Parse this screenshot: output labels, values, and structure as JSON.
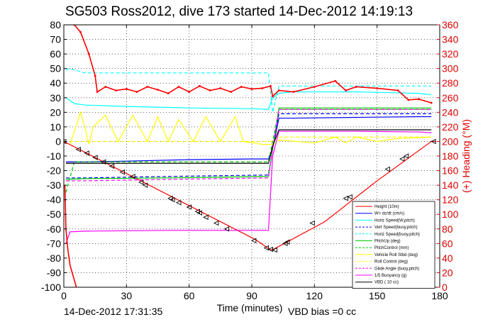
{
  "chart_data": {
    "type": "line",
    "title": "SG503 Ross2012, dive 173 started 14-Dec-2012 14:19:13",
    "xlabel": "Time (minutes)",
    "ylabel_right": "(+) Heading (°M)",
    "xlim": [
      0,
      180
    ],
    "ylim": [
      -100,
      80
    ],
    "y2lim": [
      0,
      360
    ],
    "x_ticks": [
      0,
      30,
      60,
      90,
      120,
      150,
      180
    ],
    "y_ticks": [
      -100,
      -90,
      -80,
      -70,
      -60,
      -50,
      -40,
      -30,
      -20,
      -10,
      0,
      10,
      20,
      30,
      40,
      50,
      60,
      70,
      80
    ],
    "y2_ticks": [
      0,
      20,
      40,
      60,
      80,
      100,
      120,
      140,
      160,
      180,
      200,
      220,
      240,
      260,
      280,
      300,
      320,
      340,
      360
    ],
    "grid": true,
    "legend_position": "bottom-right",
    "colors": {
      "height": "#ff0000",
      "w": "#0000ff",
      "horiz_speed": "#00ffff",
      "pitch": "#00cc00",
      "roll": "#ffff00",
      "buoyancy": "#ff00ff",
      "vbd": "#000000",
      "heading": "#ff0000",
      "right_axis": "#dd0000",
      "marker_up": "#000000"
    },
    "series": [
      {
        "name": "Height (10m)",
        "color": "#ff0000",
        "style": "solid",
        "x": [
          0,
          92,
          99,
          101,
          125,
          150,
          176,
          178
        ],
        "y": [
          0,
          -67.5,
          -74.5,
          -73.5,
          -55,
          -27,
          0,
          0
        ]
      },
      {
        "name": "W= dz/dt (cm/s)",
        "color": "#0000ff",
        "style": "solid",
        "x": [
          1,
          10,
          30,
          60,
          90,
          98,
          100,
          103,
          110,
          140,
          170,
          176
        ],
        "y": [
          -14,
          -14,
          -13.5,
          -12.5,
          -12,
          -12,
          -5,
          16,
          16,
          16.5,
          17,
          17
        ]
      },
      {
        "name": "Horiz Speed(W,pitch)",
        "color": "#00ffff",
        "style": "solid",
        "x": [
          1,
          5,
          10,
          30,
          60,
          90,
          98,
          100,
          103,
          110,
          140,
          170,
          176
        ],
        "y": [
          30,
          26,
          25,
          24,
          23,
          22.5,
          22,
          30,
          33,
          34,
          34,
          33,
          32
        ]
      },
      {
        "name": "Vert Speed(buoy,pitch)",
        "color": "#0000ff",
        "style": "dashed",
        "x": [
          1,
          10,
          50,
          98,
          100,
          103,
          140,
          176
        ],
        "y": [
          -25,
          -25,
          -24,
          -23,
          -5,
          19,
          19,
          19
        ]
      },
      {
        "name": "Horiz Speed(buoy,pitch)",
        "color": "#00ffff",
        "style": "dashed",
        "x": [
          1,
          3,
          10,
          50,
          98,
          100,
          103,
          140,
          176
        ],
        "y": [
          49,
          50,
          47,
          47,
          47,
          20,
          38,
          38,
          38
        ]
      },
      {
        "name": "PitchUp (deg)",
        "color": "#00cc00",
        "style": "solid",
        "x": [
          1,
          10,
          50,
          98,
          100,
          103,
          140,
          176
        ],
        "y": [
          -26,
          -25.5,
          -25,
          -24,
          -5,
          23,
          23,
          23
        ]
      },
      {
        "name": "PitchControl (mm)",
        "color": "#00cc00",
        "style": "dashed",
        "x": [
          1,
          5,
          50,
          98,
          100,
          103,
          140,
          176
        ],
        "y": [
          -35,
          -14,
          -14,
          -14,
          0,
          22,
          22,
          22
        ]
      },
      {
        "name": "Vehicle Roll Stbd (deg)",
        "color": "#ffff00",
        "style": "solid",
        "x": [
          3,
          8,
          10,
          12,
          14,
          20,
          26,
          33,
          40,
          45,
          50,
          55,
          62,
          68,
          75,
          82,
          86,
          95,
          100,
          103,
          120,
          130,
          135,
          140,
          150,
          160,
          176
        ],
        "y": [
          -2,
          20,
          10,
          -2,
          10,
          18,
          0,
          18,
          0,
          17,
          0,
          15,
          0,
          17,
          0,
          17,
          0,
          -2,
          -2,
          1,
          -1,
          3,
          -1,
          3,
          0,
          2,
          3
        ]
      },
      {
        "name": "Roll Control (deg)",
        "color": "#ffff00",
        "style": "dashed",
        "x": [
          3,
          30,
          60,
          99,
          103,
          140,
          176
        ],
        "y": [
          0,
          0,
          0,
          0,
          3,
          3,
          3
        ]
      },
      {
        "name": "Glide Angle (buoy,pitch)",
        "color": "#ff00ff",
        "style": "dashed",
        "x": [
          1,
          10,
          50,
          98,
          100,
          103,
          140,
          176
        ],
        "y": [
          -27,
          -27,
          -26,
          -25,
          -5,
          22,
          22,
          22
        ]
      },
      {
        "name": "1/5 Buoyancy (g)",
        "color": "#ff00ff",
        "style": "solid",
        "x": [
          1,
          3,
          10,
          50,
          98,
          100,
          103,
          140,
          170,
          176
        ],
        "y": [
          -70,
          -62,
          -61.5,
          -61,
          -61,
          -10,
          7,
          7,
          6.5,
          6
        ]
      },
      {
        "name": "VBD ( 10 cc)",
        "color": "#000000",
        "style": "solid",
        "x": [
          1,
          5,
          50,
          98,
          100,
          103,
          140,
          176
        ],
        "y": [
          -15,
          -15,
          -15,
          -15,
          -3,
          8,
          8,
          8
        ]
      }
    ],
    "heading_series": {
      "axis": "right",
      "color": "#ff0000",
      "x": [
        5,
        8,
        12,
        15,
        16,
        20,
        25,
        30,
        35,
        40,
        45,
        50,
        55,
        60,
        65,
        70,
        75,
        80,
        85,
        90,
        95,
        99,
        100,
        103,
        110,
        120,
        130,
        135,
        140,
        150,
        160,
        165,
        170,
        176
      ],
      "y": [
        360,
        350,
        320,
        290,
        268,
        275,
        270,
        272,
        268,
        275,
        271,
        266,
        275,
        268,
        276,
        270,
        273,
        268,
        275,
        272,
        273,
        276,
        262,
        270,
        268,
        275,
        283,
        270,
        275,
        273,
        270,
        257,
        258,
        253
      ]
    },
    "early_dive_curve": {
      "axis": "right",
      "color": "#ff0000",
      "x": [
        0.5,
        1,
        2,
        3,
        4.5,
        6
      ],
      "y": [
        140,
        80,
        50,
        30,
        15,
        0
      ]
    },
    "markers": {
      "symbol": "triangle",
      "x": [
        0,
        7,
        11,
        15,
        19,
        23,
        28,
        33,
        37,
        39,
        51,
        52,
        55,
        60,
        64,
        65,
        68,
        73,
        78,
        91,
        97,
        99,
        101,
        106,
        107,
        119,
        135,
        137,
        155,
        162,
        164,
        177
      ],
      "y": [
        0,
        -5.5,
        -8,
        -11,
        -14,
        -17,
        -21,
        -24,
        -28,
        -30,
        -39,
        -40,
        -42,
        -45,
        -48,
        -49,
        -52,
        -56,
        -60,
        -68,
        -73,
        -74,
        -74.5,
        -70,
        -69,
        -56,
        -39,
        -38,
        -19,
        -12,
        -10,
        0
      ]
    }
  },
  "footer": {
    "timestamp": "14-Dec-2012 17:31:35",
    "vbd_bias": "VBD bias =0 cc"
  }
}
